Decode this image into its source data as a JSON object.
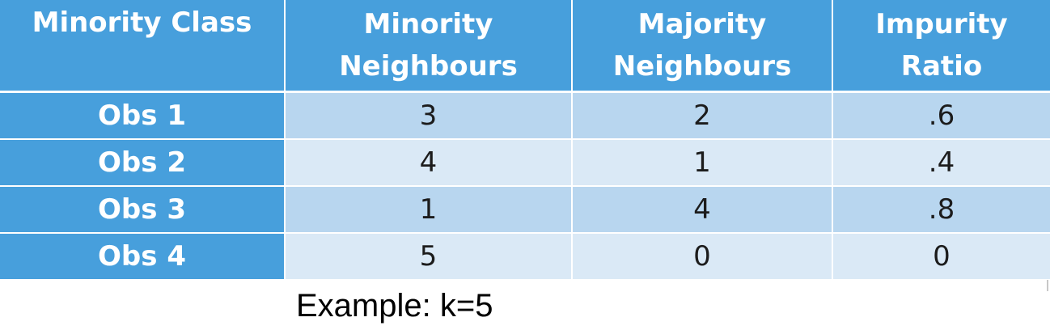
{
  "table": {
    "headers": [
      [
        "Minority Class"
      ],
      [
        "Minority",
        "Neighbours"
      ],
      [
        "Majority",
        "Neighbours"
      ],
      [
        "Impurity",
        "Ratio"
      ]
    ],
    "rows": [
      {
        "label": "Obs 1",
        "minority": "3",
        "majority": "2",
        "ratio": ".6"
      },
      {
        "label": "Obs 2",
        "minority": "4",
        "majority": "1",
        "ratio": ".4"
      },
      {
        "label": "Obs 3",
        "minority": "1",
        "majority": "4",
        "ratio": ".8"
      },
      {
        "label": "Obs 4",
        "minority": "5",
        "majority": "0",
        "ratio": "0"
      }
    ]
  },
  "caption": "Example: k=5",
  "colors": {
    "header": "#479fdc",
    "row_dark": "#b8d6ef",
    "row_light": "#dae9f6"
  }
}
